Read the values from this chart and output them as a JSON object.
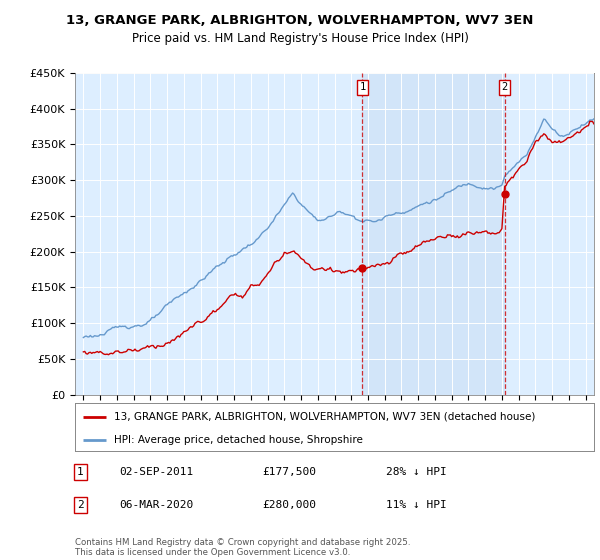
{
  "title_line1": "13, GRANGE PARK, ALBRIGHTON, WOLVERHAMPTON, WV7 3EN",
  "title_line2": "Price paid vs. HM Land Registry's House Price Index (HPI)",
  "bg_color": "#ddeeff",
  "highlight_color": "#cce0f5",
  "red_line_color": "#cc0000",
  "blue_line_color": "#6699cc",
  "ylim": [
    0,
    450000
  ],
  "yticks": [
    0,
    50000,
    100000,
    150000,
    200000,
    250000,
    300000,
    350000,
    400000,
    450000
  ],
  "ytick_labels": [
    "£0",
    "£50K",
    "£100K",
    "£150K",
    "£200K",
    "£250K",
    "£300K",
    "£350K",
    "£400K",
    "£450K"
  ],
  "legend_label_red": "13, GRANGE PARK, ALBRIGHTON, WOLVERHAMPTON, WV7 3EN (detached house)",
  "legend_label_blue": "HPI: Average price, detached house, Shropshire",
  "annotation1_date": "02-SEP-2011",
  "annotation1_price": "£177,500",
  "annotation1_hpi": "28% ↓ HPI",
  "annotation2_date": "06-MAR-2020",
  "annotation2_price": "£280,000",
  "annotation2_hpi": "11% ↓ HPI",
  "footnote": "Contains HM Land Registry data © Crown copyright and database right 2025.\nThis data is licensed under the Open Government Licence v3.0.",
  "marker1_x": 2011.67,
  "marker1_y": 177500,
  "marker2_x": 2020.17,
  "marker2_y": 280000,
  "xmin": 1995,
  "xmax": 2025.5
}
